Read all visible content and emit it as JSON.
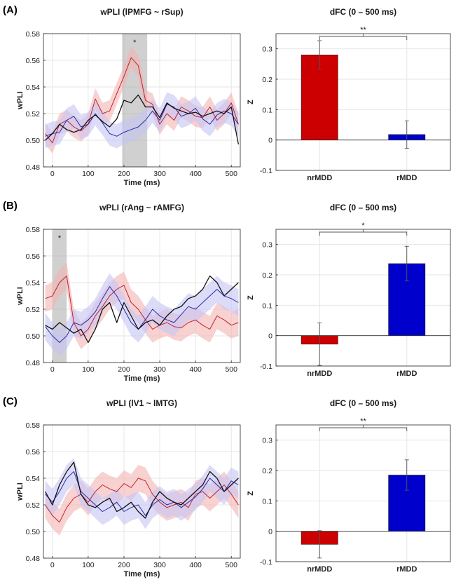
{
  "panels": [
    {
      "label": "(A)",
      "time_chart": {
        "type": "line",
        "title": "wPLI (lPMFG ~ rSup)",
        "xlabel": "Time (ms)",
        "ylabel": "wPLI",
        "xlim": [
          -25,
          525
        ],
        "ylim": [
          0.48,
          0.58
        ],
        "xticks": [
          0,
          100,
          200,
          300,
          400,
          500
        ],
        "yticks": [
          0.48,
          0.5,
          0.52,
          0.54,
          0.56,
          0.58
        ],
        "ytick_labels": [
          "0.48",
          "0.50",
          "0.52",
          "0.54",
          "0.56",
          "0.58"
        ],
        "sig_window": [
          195,
          265
        ],
        "sig_label": "*",
        "series": [
          {
            "name": "red",
            "color": "#c0242d",
            "band": "#f3b3b3",
            "x": [
              -20,
              0,
              20,
              40,
              60,
              80,
              100,
              120,
              140,
              160,
              180,
              200,
              220,
              240,
              260,
              280,
              300,
              320,
              340,
              360,
              380,
              400,
              420,
              440,
              460,
              480,
              500,
              520
            ],
            "values": [
              0.505,
              0.498,
              0.512,
              0.515,
              0.51,
              0.507,
              0.512,
              0.531,
              0.52,
              0.522,
              0.535,
              0.548,
              0.562,
              0.556,
              0.53,
              0.527,
              0.512,
              0.52,
              0.515,
              0.525,
              0.522,
              0.518,
              0.517,
              0.525,
              0.515,
              0.52,
              0.528,
              0.512
            ],
            "band_width": 0.008
          },
          {
            "name": "blue",
            "color": "#2a2aa8",
            "band": "#c4c4f5",
            "x": [
              -20,
              0,
              20,
              40,
              60,
              80,
              100,
              120,
              140,
              160,
              180,
              200,
              220,
              240,
              260,
              280,
              300,
              320,
              340,
              360,
              380,
              400,
              420,
              440,
              460,
              480,
              500,
              520
            ],
            "values": [
              0.503,
              0.505,
              0.506,
              0.515,
              0.518,
              0.51,
              0.512,
              0.52,
              0.513,
              0.505,
              0.503,
              0.506,
              0.508,
              0.51,
              0.515,
              0.522,
              0.515,
              0.527,
              0.525,
              0.518,
              0.52,
              0.524,
              0.516,
              0.512,
              0.519,
              0.522,
              0.52,
              0.512
            ],
            "band_width": 0.009
          },
          {
            "name": "black",
            "color": "#111111",
            "band": null,
            "x": [
              -20,
              0,
              20,
              40,
              60,
              80,
              100,
              120,
              140,
              160,
              180,
              200,
              220,
              240,
              260,
              280,
              300,
              320,
              340,
              360,
              380,
              400,
              420,
              440,
              460,
              480,
              500,
              520
            ],
            "values": [
              0.5,
              0.505,
              0.512,
              0.508,
              0.506,
              0.508,
              0.515,
              0.519,
              0.514,
              0.51,
              0.516,
              0.53,
              0.528,
              0.534,
              0.525,
              0.525,
              0.517,
              0.528,
              0.524,
              0.522,
              0.52,
              0.521,
              0.518,
              0.52,
              0.522,
              0.52,
              0.525,
              0.497
            ],
            "band_width": 0
          }
        ]
      },
      "bar_chart": {
        "type": "bar",
        "title": "dFC (0 – 500 ms)",
        "ylabel": "Z",
        "categories": [
          "nrMDD",
          "rMDD"
        ],
        "values": [
          0.28,
          0.018
        ],
        "errors": [
          0.047,
          0.045
        ],
        "colors": [
          "#cc0000",
          "#0000cc"
        ],
        "ylim": [
          -0.1,
          0.35
        ],
        "yticks": [
          -0.1,
          0,
          0.1,
          0.2,
          0.3
        ],
        "ytick_labels": [
          "-0.1",
          "0",
          "0.1",
          "0.2",
          "0.3"
        ],
        "sig_label": "**"
      }
    },
    {
      "label": "(B)",
      "time_chart": {
        "type": "line",
        "title": "wPLI (rAng ~ rAMFG)",
        "xlabel": "Time (ms)",
        "ylabel": "wPLI",
        "xlim": [
          -25,
          525
        ],
        "ylim": [
          0.48,
          0.58
        ],
        "xticks": [
          0,
          100,
          200,
          300,
          400,
          500
        ],
        "yticks": [
          0.48,
          0.5,
          0.52,
          0.54,
          0.56,
          0.58
        ],
        "ytick_labels": [
          "0.48",
          "0.50",
          "0.52",
          "0.54",
          "0.56",
          "0.58"
        ],
        "sig_window": [
          0,
          40
        ],
        "sig_label": "*",
        "series": [
          {
            "name": "red",
            "color": "#c0242d",
            "band": "#f3b3b3",
            "x": [
              -20,
              0,
              20,
              40,
              60,
              80,
              100,
              120,
              140,
              160,
              180,
              200,
              220,
              240,
              260,
              280,
              300,
              320,
              340,
              360,
              380,
              400,
              420,
              440,
              460,
              480,
              500,
              520
            ],
            "values": [
              0.528,
              0.53,
              0.54,
              0.545,
              0.51,
              0.5,
              0.505,
              0.515,
              0.522,
              0.53,
              0.535,
              0.538,
              0.525,
              0.52,
              0.512,
              0.505,
              0.508,
              0.51,
              0.507,
              0.506,
              0.51,
              0.512,
              0.508,
              0.505,
              0.515,
              0.512,
              0.508,
              0.51
            ],
            "band_width": 0.01
          },
          {
            "name": "blue",
            "color": "#2a2aa8",
            "band": "#c4c4f5",
            "x": [
              -20,
              0,
              20,
              40,
              60,
              80,
              100,
              120,
              140,
              160,
              180,
              200,
              220,
              240,
              260,
              280,
              300,
              320,
              340,
              360,
              380,
              400,
              420,
              440,
              460,
              480,
              500,
              520
            ],
            "values": [
              0.507,
              0.5,
              0.495,
              0.5,
              0.51,
              0.508,
              0.512,
              0.518,
              0.528,
              0.537,
              0.53,
              0.52,
              0.51,
              0.505,
              0.512,
              0.52,
              0.515,
              0.512,
              0.51,
              0.516,
              0.522,
              0.52,
              0.525,
              0.53,
              0.535,
              0.53,
              0.528,
              0.525
            ],
            "band_width": 0.01
          },
          {
            "name": "black",
            "color": "#111111",
            "band": null,
            "x": [
              -20,
              0,
              20,
              40,
              60,
              80,
              100,
              120,
              140,
              160,
              180,
              200,
              220,
              240,
              260,
              280,
              300,
              320,
              340,
              360,
              380,
              400,
              420,
              440,
              460,
              480,
              500,
              520
            ],
            "values": [
              0.508,
              0.505,
              0.51,
              0.506,
              0.502,
              0.505,
              0.495,
              0.505,
              0.52,
              0.525,
              0.51,
              0.525,
              0.515,
              0.505,
              0.51,
              0.512,
              0.508,
              0.515,
              0.52,
              0.522,
              0.528,
              0.53,
              0.535,
              0.545,
              0.54,
              0.53,
              0.535,
              0.54
            ],
            "band_width": 0
          }
        ]
      },
      "bar_chart": {
        "type": "bar",
        "title": "dFC (0 – 500 ms)",
        "ylabel": "Z",
        "categories": [
          "nrMDD",
          "rMDD"
        ],
        "values": [
          -0.028,
          0.237
        ],
        "errors": [
          0.07,
          0.057
        ],
        "colors": [
          "#cc0000",
          "#0000cc"
        ],
        "ylim": [
          -0.1,
          0.35
        ],
        "yticks": [
          -0.1,
          0,
          0.1,
          0.2,
          0.3
        ],
        "ytick_labels": [
          "-0.1",
          "0",
          "0.1",
          "0.2",
          "0.3"
        ],
        "sig_label": "*"
      }
    },
    {
      "label": "(C)",
      "time_chart": {
        "type": "line",
        "title": "wPLI (lV1 ~ lMTG)",
        "xlabel": "Time (ms)",
        "ylabel": "wPLI",
        "xlim": [
          -25,
          525
        ],
        "ylim": [
          0.48,
          0.58
        ],
        "xticks": [
          0,
          100,
          200,
          300,
          400,
          500
        ],
        "yticks": [
          0.48,
          0.5,
          0.52,
          0.54,
          0.56,
          0.58
        ],
        "ytick_labels": [
          "0.48",
          "0.50",
          "0.52",
          "0.54",
          "0.56",
          "0.58"
        ],
        "sig_window": null,
        "sig_label": "",
        "series": [
          {
            "name": "red",
            "color": "#c0242d",
            "band": "#f3b3b3",
            "x": [
              -20,
              0,
              20,
              40,
              60,
              80,
              100,
              120,
              140,
              160,
              180,
              200,
              220,
              240,
              260,
              280,
              300,
              320,
              340,
              360,
              380,
              400,
              420,
              440,
              460,
              480,
              500,
              520
            ],
            "values": [
              0.52,
              0.512,
              0.507,
              0.518,
              0.525,
              0.528,
              0.522,
              0.53,
              0.535,
              0.532,
              0.53,
              0.536,
              0.533,
              0.54,
              0.538,
              0.528,
              0.522,
              0.518,
              0.52,
              0.522,
              0.518,
              0.528,
              0.53,
              0.525,
              0.53,
              0.535,
              0.528,
              0.52
            ],
            "band_width": 0.01
          },
          {
            "name": "blue",
            "color": "#2a2aa8",
            "band": "#c4c4f5",
            "x": [
              -20,
              0,
              20,
              40,
              60,
              80,
              100,
              120,
              140,
              160,
              180,
              200,
              220,
              240,
              260,
              280,
              300,
              320,
              340,
              360,
              380,
              400,
              420,
              440,
              460,
              480,
              500,
              520
            ],
            "values": [
              0.528,
              0.522,
              0.53,
              0.54,
              0.545,
              0.53,
              0.525,
              0.52,
              0.515,
              0.518,
              0.522,
              0.515,
              0.518,
              0.52,
              0.512,
              0.52,
              0.524,
              0.52,
              0.522,
              0.518,
              0.522,
              0.526,
              0.532,
              0.54,
              0.535,
              0.53,
              0.538,
              0.535
            ],
            "band_width": 0.01
          },
          {
            "name": "black",
            "color": "#111111",
            "band": null,
            "x": [
              -20,
              0,
              20,
              40,
              60,
              80,
              100,
              120,
              140,
              160,
              180,
              200,
              220,
              240,
              260,
              280,
              300,
              320,
              340,
              360,
              380,
              400,
              420,
              440,
              460,
              480,
              500,
              520
            ],
            "values": [
              0.53,
              0.52,
              0.535,
              0.545,
              0.552,
              0.528,
              0.52,
              0.518,
              0.522,
              0.525,
              0.515,
              0.518,
              0.522,
              0.515,
              0.51,
              0.522,
              0.53,
              0.525,
              0.522,
              0.52,
              0.525,
              0.53,
              0.535,
              0.545,
              0.54,
              0.53,
              0.535,
              0.54
            ],
            "band_width": 0
          }
        ]
      },
      "bar_chart": {
        "type": "bar",
        "title": "dFC (0 – 500 ms)",
        "ylabel": "Z",
        "categories": [
          "nrMDD",
          "rMDD"
        ],
        "values": [
          -0.043,
          0.185
        ],
        "errors": [
          0.045,
          0.05
        ],
        "colors": [
          "#cc0000",
          "#0000cc"
        ],
        "ylim": [
          -0.1,
          0.35
        ],
        "yticks": [
          -0.1,
          0,
          0.1,
          0.2,
          0.3
        ],
        "ytick_labels": [
          "-0.1",
          "0",
          "0.1",
          "0.2",
          "0.3"
        ],
        "sig_label": "**"
      }
    }
  ]
}
